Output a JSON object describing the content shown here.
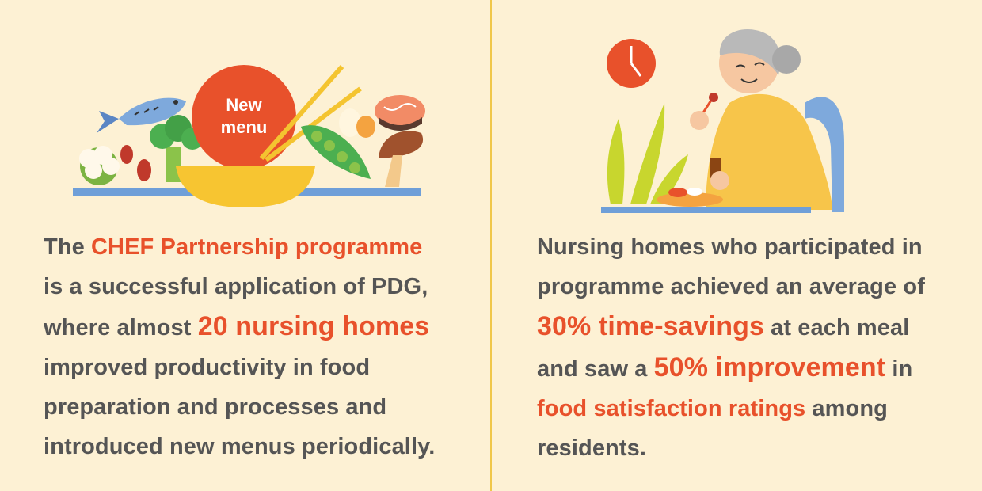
{
  "colors": {
    "background": "#fdf1d4",
    "divider": "#f0c74a",
    "body_text": "#555555",
    "highlight": "#e8512b"
  },
  "left": {
    "illustration": {
      "icon": "new-menu-food-icon",
      "badge_line1": "New",
      "badge_line2": "menu"
    },
    "lines": [
      {
        "parts": [
          {
            "t": "The "
          },
          {
            "t": "CHEF Partnership programme",
            "hl": true
          }
        ]
      },
      {
        "parts": [
          {
            "t": "is a successful application of PDG,"
          }
        ]
      },
      {
        "parts": [
          {
            "t": "where almost "
          },
          {
            "t": "20 nursing homes",
            "hl": true,
            "big": true
          }
        ]
      },
      {
        "parts": [
          {
            "t": "improved productivity in food"
          }
        ]
      },
      {
        "parts": [
          {
            "t": "preparation and processes and"
          }
        ]
      },
      {
        "parts": [
          {
            "t": "introduced new menus periodically."
          }
        ]
      }
    ]
  },
  "right": {
    "illustration": {
      "icon": "elderly-woman-eating-icon",
      "clock_icon": "clock-icon"
    },
    "lines": [
      {
        "parts": [
          {
            "t": "Nursing homes who participated in"
          }
        ]
      },
      {
        "parts": [
          {
            "t": "programme achieved an average of"
          }
        ]
      },
      {
        "parts": [
          {
            "t": "30% time-savings",
            "hl": true,
            "big": true
          },
          {
            "t": " at each meal"
          }
        ]
      },
      {
        "parts": [
          {
            "t": "and saw a "
          },
          {
            "t": "50% improvement",
            "hl": true,
            "big": true
          },
          {
            "t": " in"
          }
        ]
      },
      {
        "parts": [
          {
            "t": "food satisfaction ratings",
            "hl": true
          },
          {
            "t": " among"
          }
        ]
      },
      {
        "parts": [
          {
            "t": "residents."
          }
        ]
      }
    ]
  }
}
